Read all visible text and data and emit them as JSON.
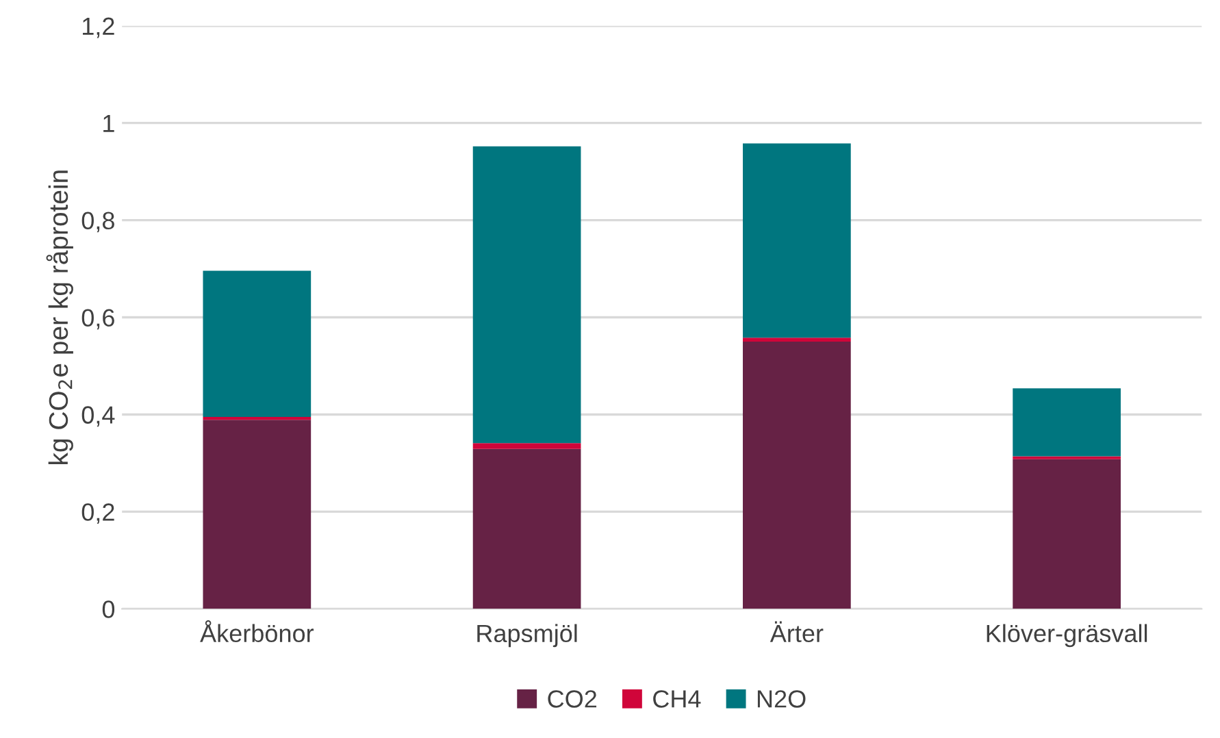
{
  "chart_data": {
    "type": "bar",
    "stacked": true,
    "ylabel": "kg CO$_{2}$e per kg råprotein",
    "categories": [
      "Åkerbönor",
      "Rapsmjöl",
      "Ärter",
      "Klöver-gräsvall"
    ],
    "series": [
      {
        "name": "CO2",
        "color": "#662245",
        "values": [
          0.389,
          0.329,
          0.55,
          0.308
        ]
      },
      {
        "name": "CH4",
        "color": "#d0053a",
        "values": [
          0.006,
          0.012,
          0.008,
          0.006
        ]
      },
      {
        "name": "N2O",
        "color": "#00767f",
        "values": [
          0.301,
          0.611,
          0.4,
          0.14
        ]
      }
    ],
    "ylim": [
      0,
      1.2
    ],
    "yticks": [
      0,
      {
        "value": 0.2,
        "label": "0,2"
      },
      {
        "value": 0.4,
        "label": "0,4"
      },
      {
        "value": 0.6,
        "label": "0,6"
      },
      {
        "value": 0.8,
        "label": "0,8"
      },
      1,
      {
        "value": 1.2,
        "label": "1,2"
      }
    ],
    "grid": "y",
    "legend": "bottom"
  }
}
